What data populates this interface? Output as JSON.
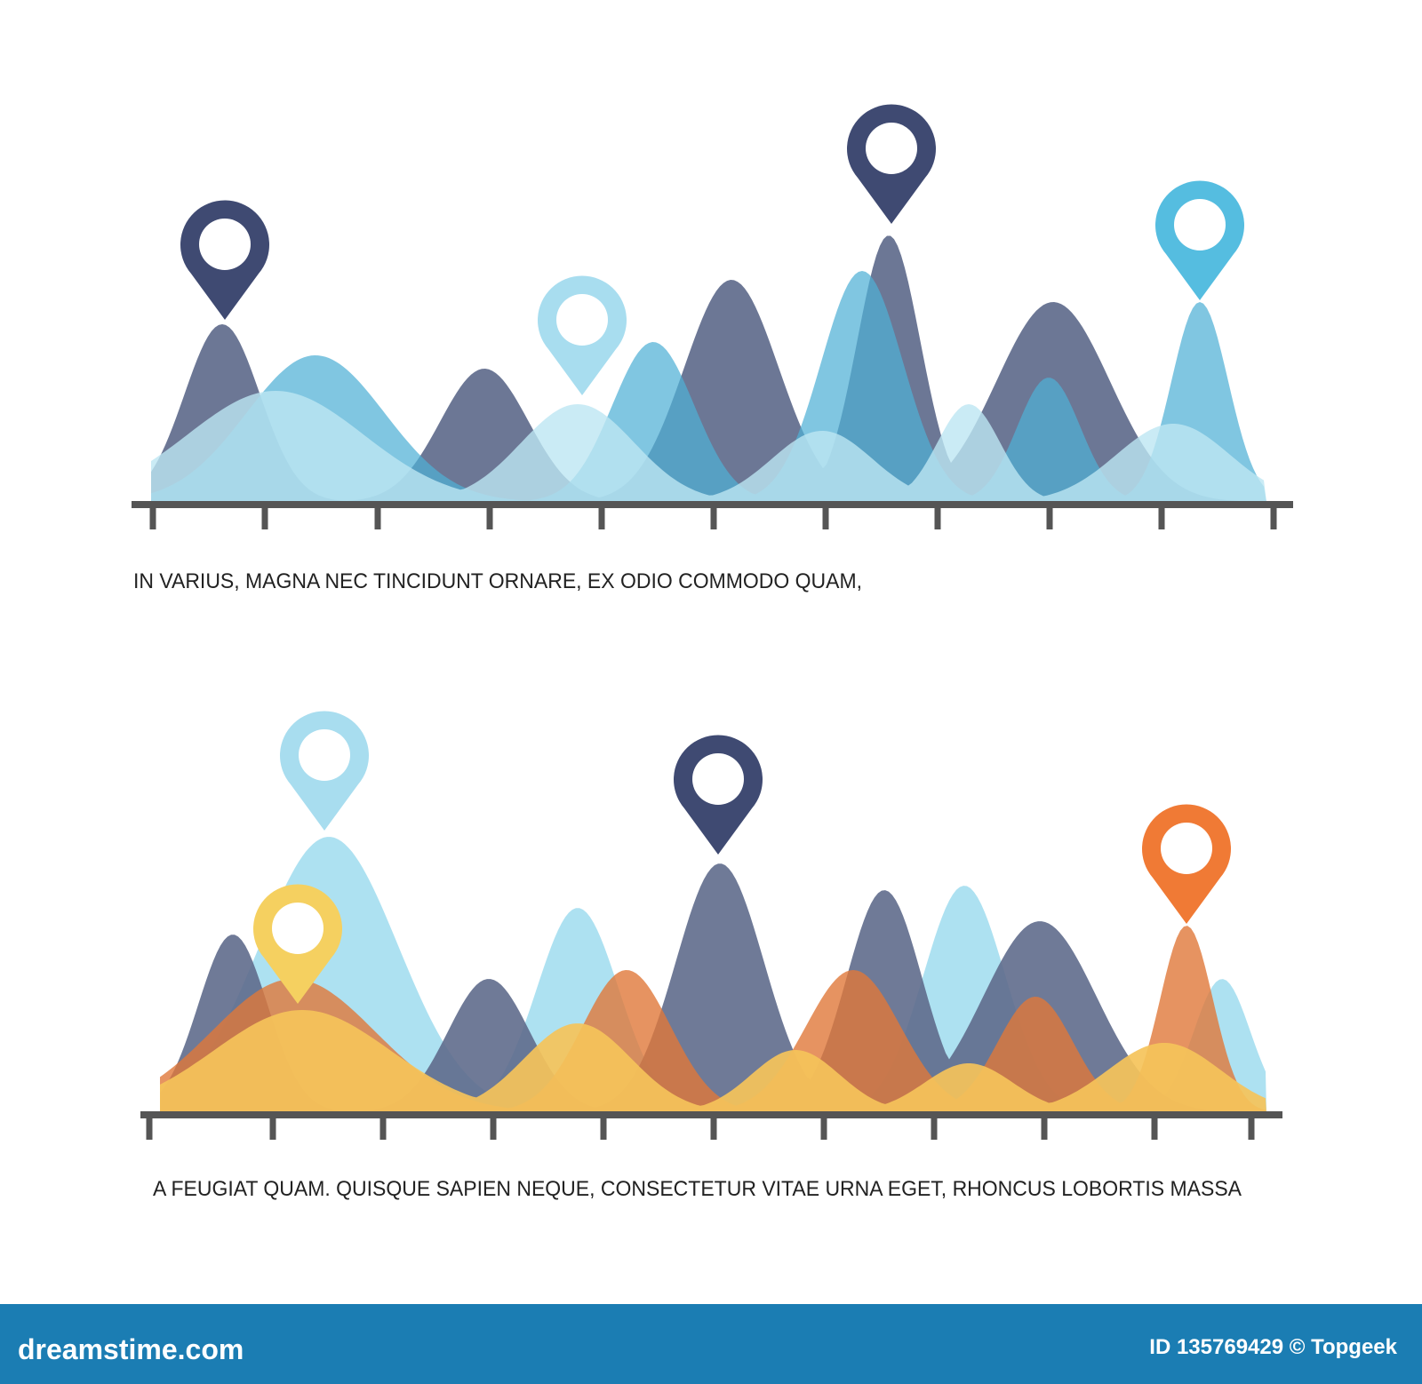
{
  "captions": [
    "IN VARIUS, MAGNA NEC TINCIDUNT ORNARE, EX ODIO COMMODO QUAM,",
    "A FEUGIAT QUAM. QUISQUE SAPIEN NEQUE, CONSECTETUR VITAE URNA EGET, RHONCUS LOBORTIS MASSA"
  ],
  "footer": {
    "brand": "dreamstime.com",
    "credit": "ID 135769429 © Topgeek"
  }
}
